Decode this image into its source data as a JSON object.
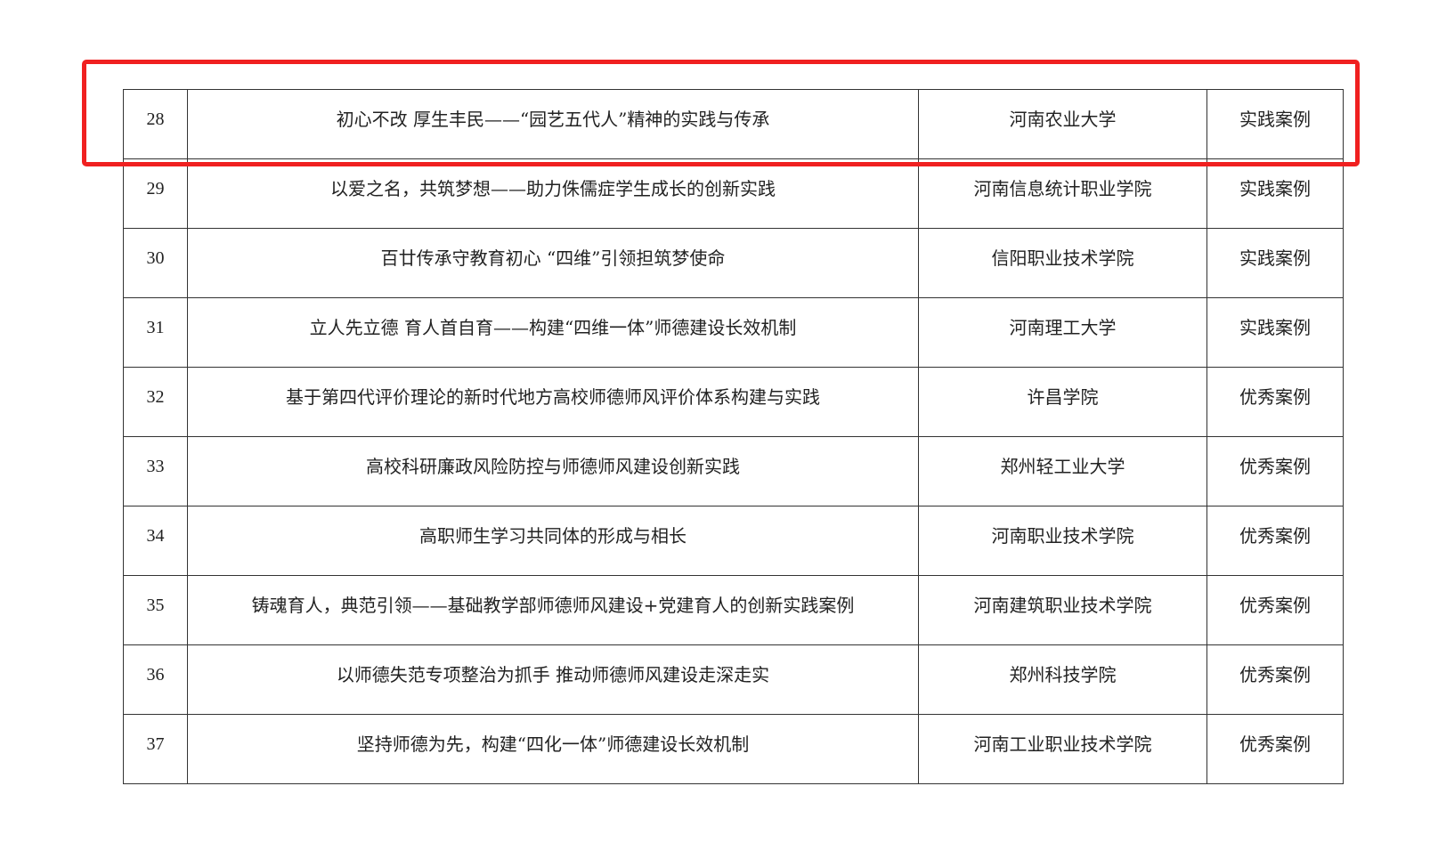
{
  "table": {
    "rows": [
      {
        "no": "28",
        "title": "初心不改 厚生丰民——“园艺五代人”精神的实践与传承",
        "institution": "河南农业大学",
        "category": "实践案例"
      },
      {
        "no": "29",
        "title": "以爱之名，共筑梦想——助力侏儒症学生成长的创新实践",
        "institution": "河南信息统计职业学院",
        "category": "实践案例"
      },
      {
        "no": "30",
        "title": "百廿传承守教育初心 “四维”引领担筑梦使命",
        "institution": "信阳职业技术学院",
        "category": "实践案例"
      },
      {
        "no": "31",
        "title": "立人先立德 育人首自育——构建“四维一体”师德建设长效机制",
        "institution": "河南理工大学",
        "category": "实践案例"
      },
      {
        "no": "32",
        "title": "基于第四代评价理论的新时代地方高校师德师风评价体系构建与实践",
        "institution": "许昌学院",
        "category": "优秀案例"
      },
      {
        "no": "33",
        "title": "高校科研廉政风险防控与师德师风建设创新实践",
        "institution": "郑州轻工业大学",
        "category": "优秀案例"
      },
      {
        "no": "34",
        "title": "高职师生学习共同体的形成与相长",
        "institution": "河南职业技术学院",
        "category": "优秀案例"
      },
      {
        "no": "35",
        "title": "铸魂育人，典范引领——基础教学部师德师风建设+党建育人的创新实践案例",
        "institution": "河南建筑职业技术学院",
        "category": "优秀案例"
      },
      {
        "no": "36",
        "title": "以师德失范专项整治为抓手 推动师德师风建设走深走实",
        "institution": "郑州科技学院",
        "category": "优秀案例"
      },
      {
        "no": "37",
        "title": "坚持师德为先，构建“四化一体”师德建设长效机制",
        "institution": "河南工业职业技术学院",
        "category": "优秀案例"
      }
    ]
  },
  "highlight": {
    "color": "#f02020",
    "row": "28"
  }
}
